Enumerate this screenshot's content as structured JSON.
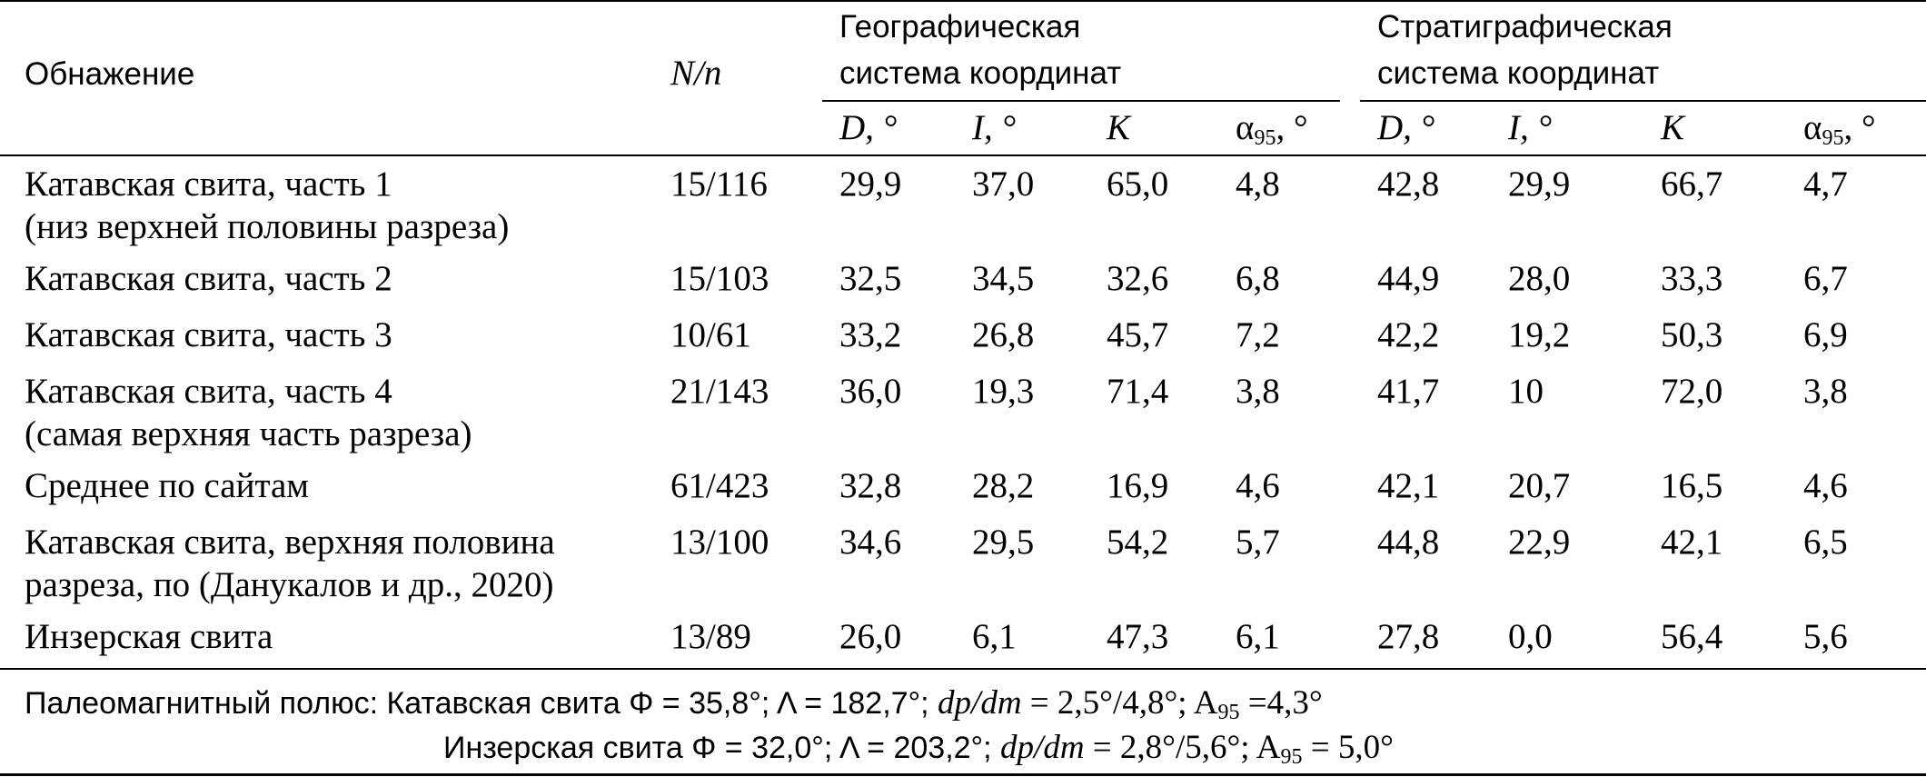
{
  "header": {
    "outcrop": "Обнажение",
    "Nn": "N/n",
    "geo_line1": "Географическая",
    "geo_line2": "система координат",
    "strat_line1": "Стратиграфическая",
    "strat_line2": "система координат",
    "sub_D": "D, °",
    "sub_I": "I, °",
    "sub_K": "K",
    "sub_a95_pre": "α",
    "sub_a95_sub": "95",
    "sub_a95_post": ", °"
  },
  "rows": [
    {
      "name1": "Катавская свита, часть 1",
      "name2": "(низ верхней половины разреза)",
      "Nn": "15/116",
      "gD": "29,9",
      "gI": "37,0",
      "gK": "65,0",
      "ga": "4,8",
      "sD": "42,8",
      "sI": "29,9",
      "sK": "66,7",
      "sa": "4,7"
    },
    {
      "name1": "Катавская свита, часть 2",
      "name2": "",
      "Nn": "15/103",
      "gD": "32,5",
      "gI": "34,5",
      "gK": "32,6",
      "ga": "6,8",
      "sD": "44,9",
      "sI": "28,0",
      "sK": "33,3",
      "sa": "6,7"
    },
    {
      "name1": "Катавская свита, часть 3",
      "name2": "",
      "Nn": "10/61",
      "gD": "33,2",
      "gI": "26,8",
      "gK": "45,7",
      "ga": "7,2",
      "sD": "42,2",
      "sI": "19,2",
      "sK": "50,3",
      "sa": "6,9"
    },
    {
      "name1": "Катавская свита, часть 4",
      "name2": "(самая верхняя часть разреза)",
      "Nn": "21/143",
      "gD": "36,0",
      "gI": "19,3",
      "gK": "71,4",
      "ga": "3,8",
      "sD": "41,7",
      "sI": "10",
      "sK": "72,0",
      "sa": "3,8"
    },
    {
      "name1": "Среднее по сайтам",
      "name2": "",
      "Nn": "61/423",
      "gD": "32,8",
      "gI": "28,2",
      "gK": "16,9",
      "ga": "4,6",
      "sD": "42,1",
      "sI": "20,7",
      "sK": "16,5",
      "sa": "4,6"
    },
    {
      "name1": "Катавская свита, верхняя половина",
      "name2": "разреза, по (Данукалов и др., 2020)",
      "Nn": "13/100",
      "gD": "34,6",
      "gI": "29,5",
      "gK": "54,2",
      "ga": "5,7",
      "sD": "44,8",
      "sI": "22,9",
      "sK": "42,1",
      "sa": "6,5"
    },
    {
      "name1": "Инзерская свита",
      "name2": "",
      "Nn": "13/89",
      "gD": "26,0",
      "gI": "6,1",
      "gK": "47,3",
      "ga": "6,1",
      "sD": "27,8",
      "sI": "0,0",
      "sK": "56,4",
      "sa": "5,6"
    }
  ],
  "pole": {
    "line1_pre": "Палеомагнитный полюс: Катавская свита  Φ = 35,8°; Λ = 182,7°; ",
    "line1_dpdm": "dp/dm",
    "line1_mid": " = 2,5°/4,8°; A",
    "line1_sub": "95",
    "line1_post": " =4,3°",
    "line2_pre": "Инзерская свита  Φ = 32,0°; Λ = 203,2°; ",
    "line2_dpdm": "dp/dm",
    "line2_mid": " = 2,8°/5,6°; A",
    "line2_sub": "95",
    "line2_post": " = 5,0°"
  }
}
